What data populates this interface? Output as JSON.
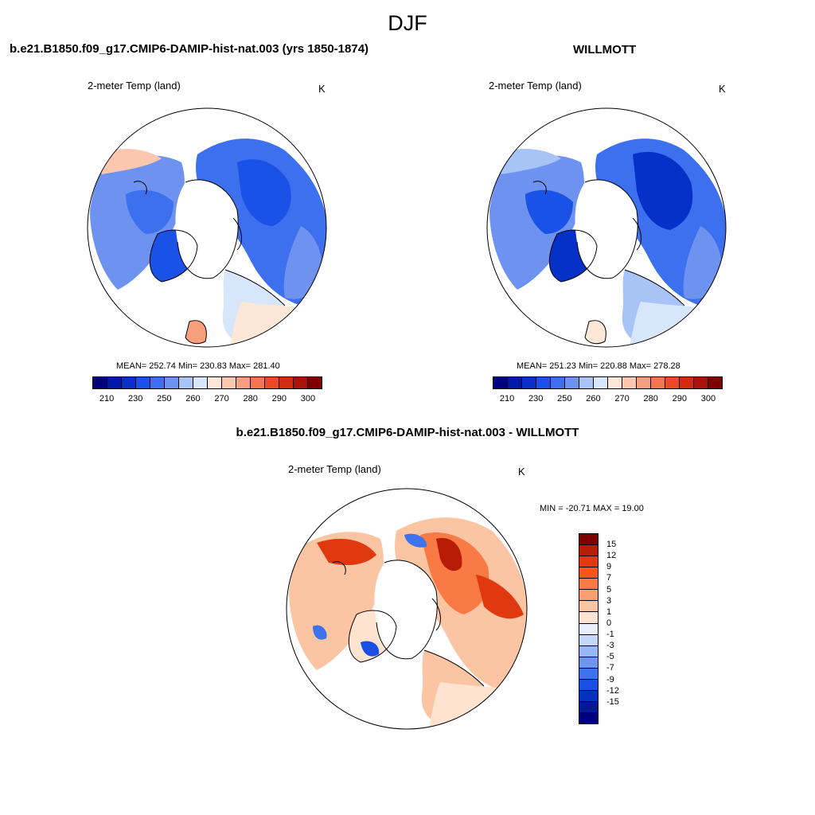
{
  "title": "DJF",
  "panels": {
    "left": {
      "title": "b.e21.B1850.f09_g17.CMIP6-DAMIP-hist-nat.003 (yrs 1850-1874)",
      "variable": "2-meter Temp (land)",
      "units": "K",
      "stats": "MEAN= 252.74  Min= 230.83  Max= 281.40"
    },
    "right": {
      "title": "WILLMOTT",
      "variable": "2-meter Temp (land)",
      "units": "K",
      "stats": "MEAN= 251.23  Min= 220.88  Max= 278.28"
    },
    "diff": {
      "title": "b.e21.B1850.f09_g17.CMIP6-DAMIP-hist-nat.003 - WILLMOTT",
      "variable": "2-meter Temp (land)",
      "units": "K",
      "stats": "MIN = -20.71 MAX =  19.00"
    }
  },
  "colorbar_abs": {
    "colors": [
      "#00007f",
      "#0018a8",
      "#0531c8",
      "#1a51e6",
      "#3d70ee",
      "#6e92f0",
      "#a8c3f6",
      "#d8e6fb",
      "#fde8d8",
      "#fbc7ae",
      "#f8a07c",
      "#f2764e",
      "#ec4a24",
      "#d12c0d",
      "#a81508",
      "#7f0000"
    ],
    "tick_labels": [
      "210",
      "230",
      "250",
      "260",
      "270",
      "280",
      "290",
      "300"
    ]
  },
  "colorbar_diff": {
    "colors": [
      "#7f0000",
      "#b81c04",
      "#e0380f",
      "#f6561e",
      "#f97a44",
      "#f99e70",
      "#fbc4a2",
      "#fde3d0",
      "#e9f0fb",
      "#c4d7f7",
      "#97b8f4",
      "#6b96f1",
      "#3d73ec",
      "#1a4fe3",
      "#0531c3",
      "#001a96",
      "#00007f"
    ],
    "tick_labels": [
      "15",
      "12",
      "9",
      "7",
      "5",
      "3",
      "1",
      "0",
      "-1",
      "-3",
      "-5",
      "-7",
      "-9",
      "-12",
      "-15"
    ]
  }
}
